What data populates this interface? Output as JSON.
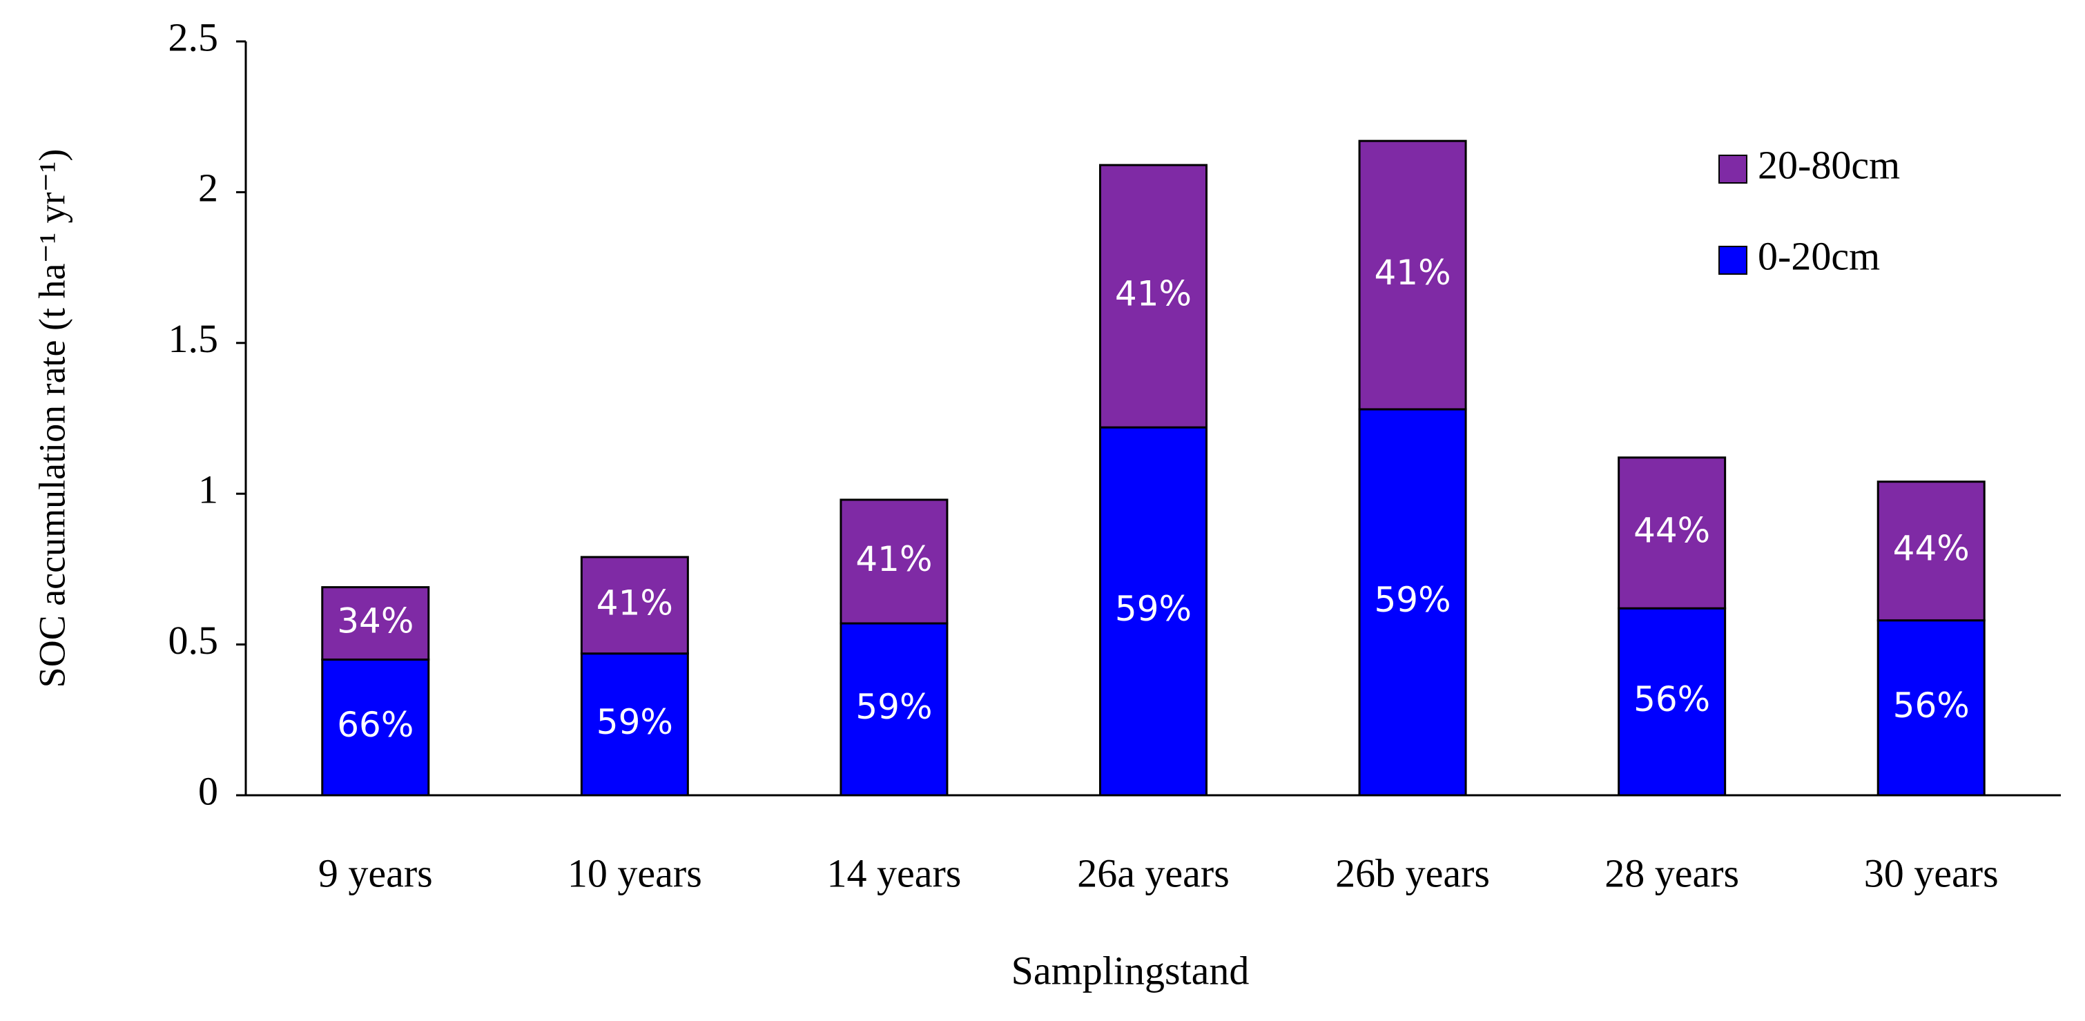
{
  "chart_data": {
    "type": "stacked_bar",
    "ylabel": "SOC accumulation rate (t ha⁻¹ yr⁻¹)",
    "xlabel": "Samplingstand",
    "categories": [
      "9 years",
      "10 years",
      "14 years",
      "26a years",
      "26b years",
      "28 years",
      "30 years"
    ],
    "series": [
      {
        "name": "0-20cm",
        "color": "#0000ff",
        "values": [
          0.45,
          0.47,
          0.57,
          1.22,
          1.28,
          0.62,
          0.58
        ],
        "labels": [
          "66%",
          "59%",
          "59%",
          "59%",
          "59%",
          "56%",
          "56%"
        ]
      },
      {
        "name": "20-80cm",
        "color": "#7f2aa5",
        "values": [
          0.24,
          0.32,
          0.41,
          0.87,
          0.89,
          0.5,
          0.46
        ],
        "labels": [
          "34%",
          "41%",
          "41%",
          "41%",
          "41%",
          "44%",
          "44%"
        ]
      }
    ],
    "ylim": [
      0,
      2.5
    ],
    "yticks": [
      0,
      0.5,
      1,
      1.5,
      2,
      2.5
    ],
    "grid": false,
    "legend": "upper-right"
  }
}
